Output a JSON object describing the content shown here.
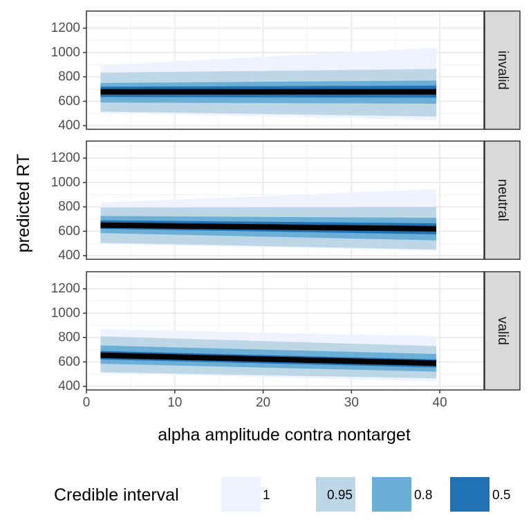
{
  "chart_data": {
    "type": "area",
    "xlabel": "alpha amplitude contra nontarget",
    "ylabel": "predicted RT",
    "xlim": [
      0,
      45
    ],
    "ylim": [
      370,
      1340
    ],
    "x_ticks": [
      0,
      10,
      20,
      30,
      40
    ],
    "y_ticks": [
      400,
      600,
      800,
      1000,
      1200
    ],
    "grid": true,
    "legend": {
      "title": "Credible interval",
      "position": "bottom",
      "entries": [
        {
          "label": "1",
          "color": "#eff3ff"
        },
        {
          "label": "0.95",
          "color": "#bdd7e7"
        },
        {
          "label": "0.8",
          "color": "#6baed6"
        },
        {
          "label": "0.5",
          "color": "#2171b5"
        }
      ]
    },
    "line_color": "#000000",
    "x": [
      1.6,
      39.6
    ],
    "panels": [
      {
        "label": "invalid",
        "mean": [
          678,
          678
        ],
        "bands": [
          {
            "level": "1",
            "lower": [
              505,
              445
            ],
            "upper": [
              895,
              1040
            ]
          },
          {
            "level": "0.95",
            "lower": [
              515,
              475
            ],
            "upper": [
              835,
              865
            ]
          },
          {
            "level": "0.8",
            "lower": [
              590,
              580
            ],
            "upper": [
              750,
              770
            ]
          },
          {
            "level": "0.5",
            "lower": [
              635,
              630
            ],
            "upper": [
              720,
              728
            ]
          }
        ]
      },
      {
        "label": "neutral",
        "mean": [
          650,
          620
        ],
        "bands": [
          {
            "level": "1",
            "lower": [
              495,
              440
            ],
            "upper": [
              835,
              945
            ]
          },
          {
            "level": "0.95",
            "lower": [
              505,
              450
            ],
            "upper": [
              795,
              800
            ]
          },
          {
            "level": "0.8",
            "lower": [
              585,
              525
            ],
            "upper": [
              725,
              710
            ]
          },
          {
            "level": "0.5",
            "lower": [
              620,
              575
            ],
            "upper": [
              690,
              665
            ]
          }
        ]
      },
      {
        "label": "valid",
        "mean": [
          655,
          590
        ],
        "bands": [
          {
            "level": "1",
            "lower": [
              510,
              440
            ],
            "upper": [
              870,
              810
            ]
          },
          {
            "level": "0.95",
            "lower": [
              515,
              465
            ],
            "upper": [
              810,
              730
            ]
          },
          {
            "level": "0.8",
            "lower": [
              585,
              520
            ],
            "upper": [
              735,
              665
            ]
          },
          {
            "level": "0.5",
            "lower": [
              620,
              555
            ],
            "upper": [
              690,
              620
            ]
          }
        ]
      }
    ]
  }
}
